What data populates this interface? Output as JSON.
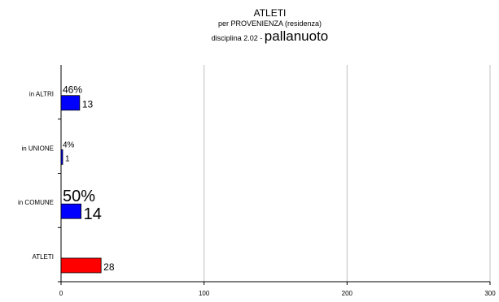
{
  "header": {
    "title": "ATLETI",
    "subtitle": "per PROVENIENZA (residenza)",
    "discipline_prefix": "disciplina 2.02 - ",
    "discipline_name": "pallanuoto"
  },
  "colors": {
    "blue": "#0000ff",
    "red": "#ff0000",
    "grid": "#c0c0c0"
  },
  "chart_data": {
    "type": "bar",
    "orientation": "horizontal",
    "title": "ATLETI",
    "subtitle": "per PROVENIENZA (residenza)",
    "categories": [
      "in ALTRI",
      "in UNIONE",
      "in COMUNE",
      "ATLETI"
    ],
    "values": [
      13,
      1,
      14,
      28
    ],
    "percent_labels": [
      "46%",
      "4%",
      "50%",
      ""
    ],
    "value_labels": [
      "13",
      "1",
      "14",
      "28"
    ],
    "bar_colors": [
      "#0000ff",
      "#0000ff",
      "#0000ff",
      "#ff0000"
    ],
    "xlim": [
      0,
      300
    ],
    "xticks": [
      "0",
      "100",
      "200",
      "300"
    ],
    "xlabel": "",
    "ylabel": "",
    "grid": "vertical",
    "legend": "none"
  }
}
